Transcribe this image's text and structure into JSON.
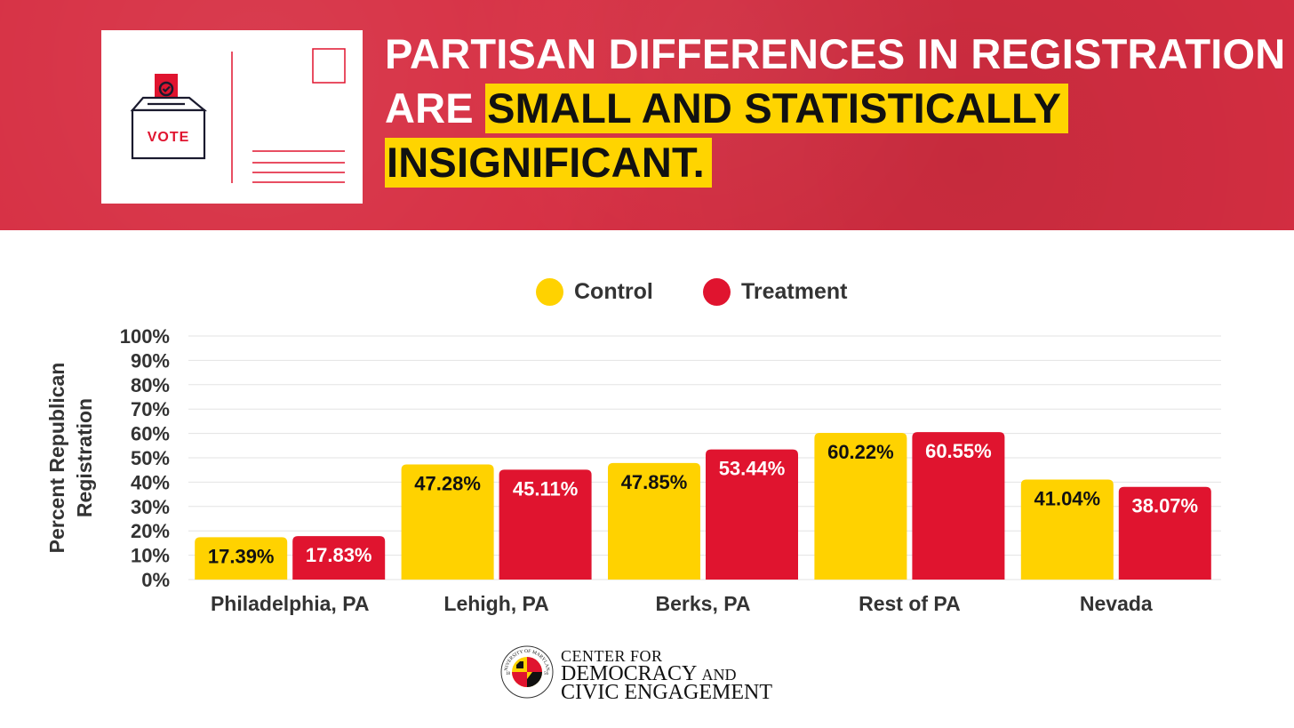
{
  "colors": {
    "banner_red": "#d62e42",
    "highlight_yellow": "#ffd400",
    "control": "#ffd200",
    "treatment": "#e0142f",
    "text_dark": "#333333"
  },
  "banner": {
    "icon": "postcard-vote-icon",
    "postcard_vote_text": "VOTE",
    "headline_line1": "PARTISAN DIFFERENCES IN REGISTRATION",
    "headline_line2_plain": "ARE",
    "headline_line2_highlight": "SMALL AND STATISTICALLY",
    "headline_line3_highlight": "INSIGNIFICANT."
  },
  "chart_data": {
    "type": "bar",
    "title": "PARTISAN DIFFERENCES IN REGISTRATION ARE SMALL AND STATISTICALLY INSIGNIFICANT.",
    "ylabel": "Percent Republican Registration",
    "xlabel": "",
    "categories": [
      "Philadelphia, PA",
      "Lehigh, PA",
      "Berks, PA",
      "Rest of PA",
      "Nevada"
    ],
    "series": [
      {
        "name": "Control",
        "color": "#ffd200",
        "values": [
          17.39,
          47.28,
          47.85,
          60.22,
          41.04
        ],
        "labels": [
          "17.39%",
          "47.28%",
          "47.85%",
          "60.22%",
          "41.04%"
        ]
      },
      {
        "name": "Treatment",
        "color": "#e0142f",
        "values": [
          17.83,
          45.11,
          53.44,
          60.55,
          38.07
        ],
        "labels": [
          "17.83%",
          "45.11%",
          "53.44%",
          "60.55%",
          "38.07%"
        ]
      }
    ],
    "ylim": [
      0,
      100
    ],
    "yticks": [
      "0%",
      "10%",
      "20%",
      "30%",
      "40%",
      "50%",
      "60%",
      "70%",
      "80%",
      "90%",
      "100%"
    ],
    "grid": true,
    "legend_position": "top-center"
  },
  "footer": {
    "seal_icon": "university-of-maryland-seal-icon",
    "seal_text": "UNIVERSITY OF MARYLAND",
    "seal_year_left": "18",
    "seal_year_right": "56",
    "line1": "CENTER FOR",
    "line2_main": "DEMOCRACY",
    "line2_small": "AND",
    "line3": "CIVIC ENGAGEMENT"
  }
}
